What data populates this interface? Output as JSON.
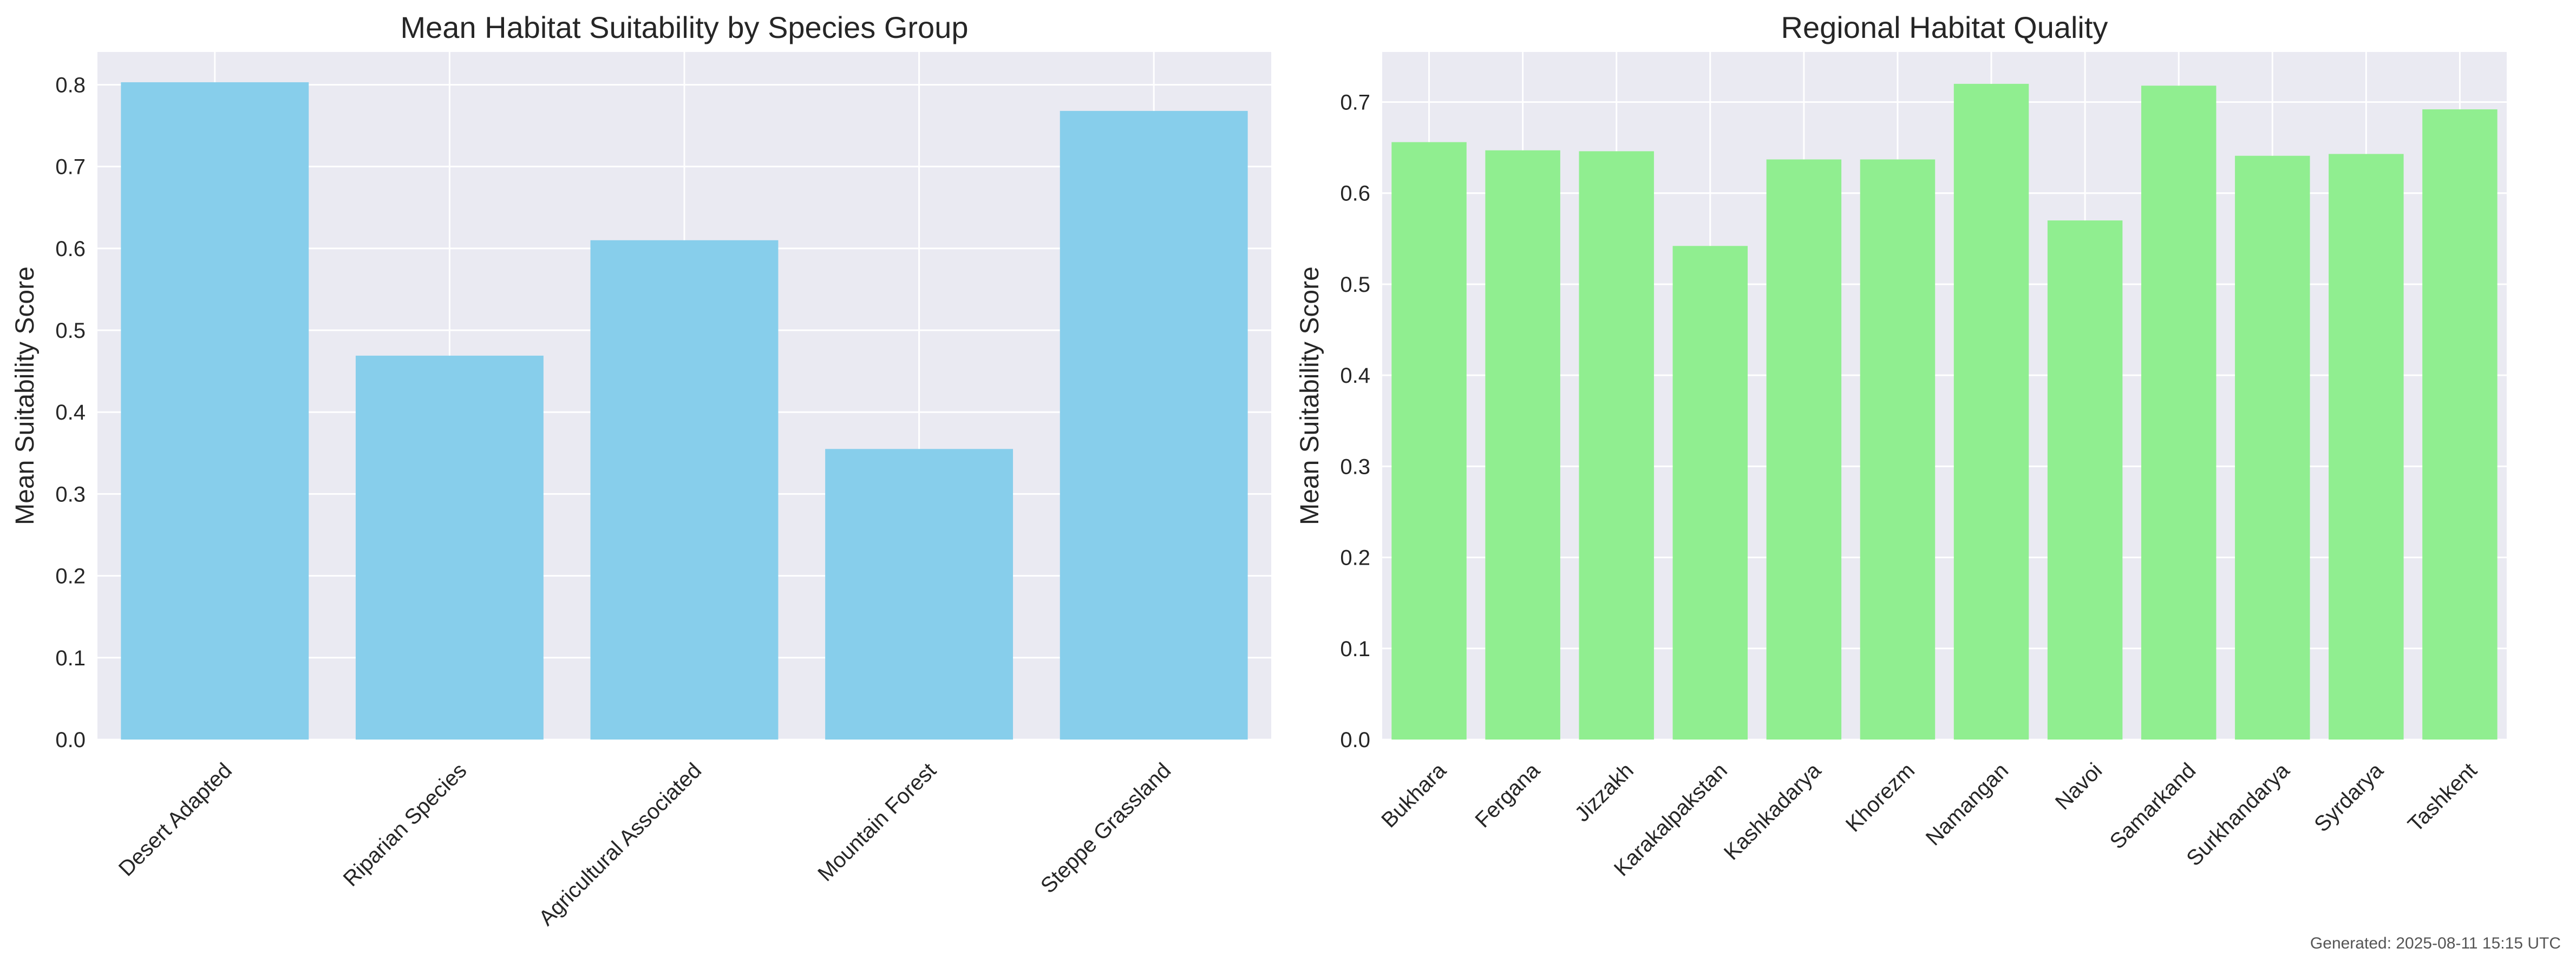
{
  "colors": {
    "plot_background": "#eaeaf2",
    "grid": "#ffffff",
    "text": "#262626",
    "bar_left": "#87ceeb",
    "bar_right": "#90ee90"
  },
  "footer": {
    "generated": "Generated: 2025-08-11 15:15 UTC"
  },
  "chart_data": [
    {
      "type": "bar",
      "title": "Mean Habitat Suitability by Species Group",
      "xlabel": "",
      "ylabel": "Mean Suitability Score",
      "categories": [
        "Desert Adapted",
        "Riparian Species",
        "Agricultural Associated",
        "Mountain Forest",
        "Steppe Grassland"
      ],
      "values": [
        0.803,
        0.469,
        0.61,
        0.355,
        0.768
      ],
      "ylim": [
        0,
        0.84
      ],
      "yticks": [
        0.0,
        0.1,
        0.2,
        0.3,
        0.4,
        0.5,
        0.6,
        0.7,
        0.8
      ],
      "ytick_labels": [
        "0.0",
        "0.1",
        "0.2",
        "0.3",
        "0.4",
        "0.5",
        "0.6",
        "0.7",
        "0.8"
      ],
      "grid": true,
      "legend": "none"
    },
    {
      "type": "bar",
      "title": "Regional Habitat Quality",
      "xlabel": "",
      "ylabel": "Mean Suitability Score",
      "categories": [
        "Bukhara",
        "Fergana",
        "Jizzakh",
        "Karakalpakstan",
        "Kashkadarya",
        "Khorezm",
        "Namangan",
        "Navoi",
        "Samarkand",
        "Surkhandarya",
        "Syrdarya",
        "Tashkent"
      ],
      "values": [
        0.656,
        0.647,
        0.646,
        0.542,
        0.637,
        0.637,
        0.72,
        0.57,
        0.718,
        0.641,
        0.643,
        0.692
      ],
      "ylim": [
        0,
        0.755
      ],
      "yticks": [
        0.0,
        0.1,
        0.2,
        0.3,
        0.4,
        0.5,
        0.6,
        0.7
      ],
      "ytick_labels": [
        "0.0",
        "0.1",
        "0.2",
        "0.3",
        "0.4",
        "0.5",
        "0.6",
        "0.7"
      ],
      "grid": true,
      "legend": "none"
    }
  ]
}
